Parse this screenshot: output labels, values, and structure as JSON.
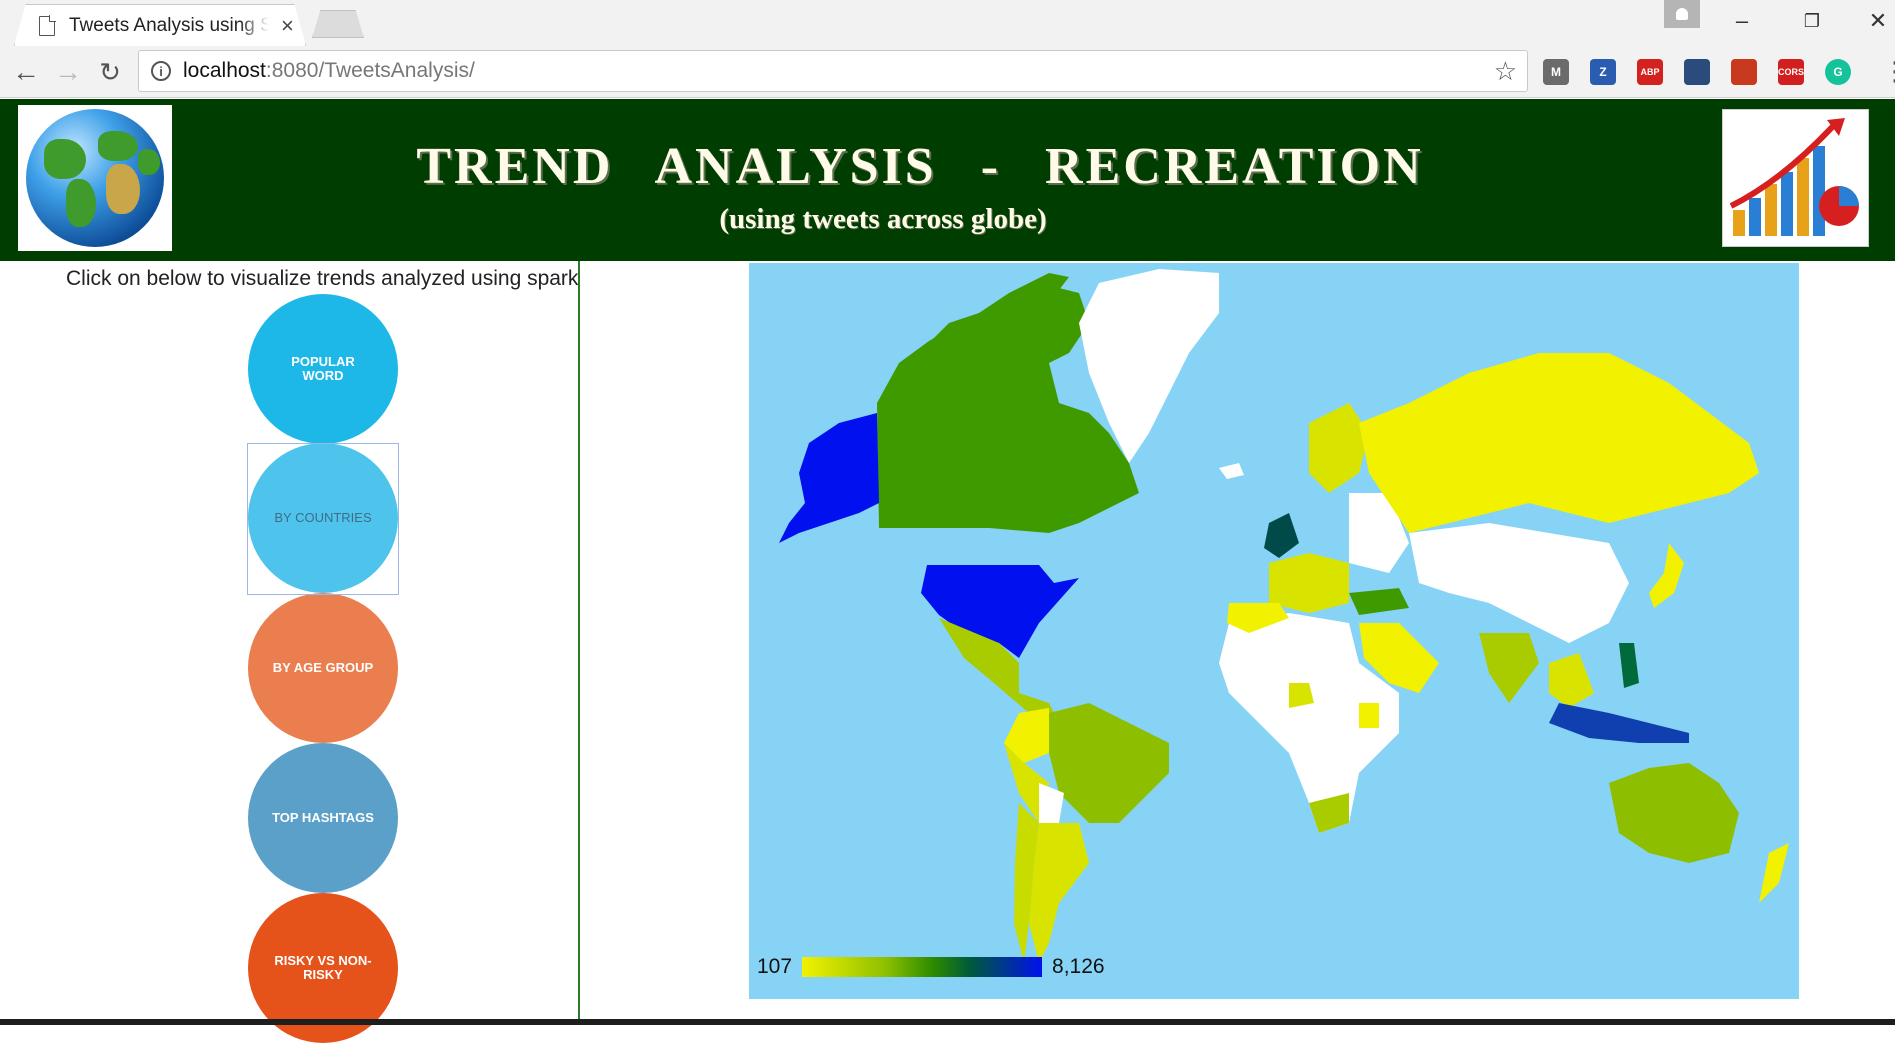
{
  "browser": {
    "tab_title": "Tweets Analysis using Spark",
    "tab_close": "×",
    "url_host": "localhost",
    "url_rest": ":8080/TweetsAnalysis/",
    "info_glyph": "i",
    "star_glyph": "☆",
    "extensions": [
      {
        "name": "extension-m-icon",
        "label": "M",
        "color": "#6b6b6b"
      },
      {
        "name": "extension-z-icon",
        "label": "Z",
        "color": "#2a5db0"
      },
      {
        "name": "extension-abp-icon",
        "label": "ABP",
        "color": "#d3211d"
      },
      {
        "name": "extension-shield-icon",
        "label": "",
        "color": "#2b4b7c"
      },
      {
        "name": "extension-bookmark-icon",
        "label": "",
        "color": "#c83a1d"
      },
      {
        "name": "extension-cors-icon",
        "label": "CORS",
        "color": "#d11f1f"
      },
      {
        "name": "extension-grammarly-icon",
        "label": "G",
        "color": "#15c39a"
      }
    ]
  },
  "header": {
    "title": "TREND ANALYSIS - RECREATION",
    "subtitle": "(using tweets across globe)"
  },
  "sidebar": {
    "instruction": "Click on below to visualize trends analyzed using spark",
    "buttons": [
      {
        "label": "POPULAR WORD",
        "color": "#1eb8e8"
      },
      {
        "label": "BY COUNTRIES",
        "color": "#4ec4ec"
      },
      {
        "label": "BY AGE GROUP",
        "color": "#ea7e4e"
      },
      {
        "label": "TOP HASHTAGS",
        "color": "#5ba0c8"
      },
      {
        "label": "RISKY VS NON-RISKY",
        "color": "#e5521a"
      }
    ]
  },
  "map": {
    "legend_min": "107",
    "legend_max": "8,126",
    "colors": {
      "ocean": "#87d3f6",
      "no_data": "#ffffff",
      "low": "#f2f200",
      "mid": "#8dbf00",
      "mid_high": "#3f9a00",
      "high": "#0010ee"
    }
  }
}
